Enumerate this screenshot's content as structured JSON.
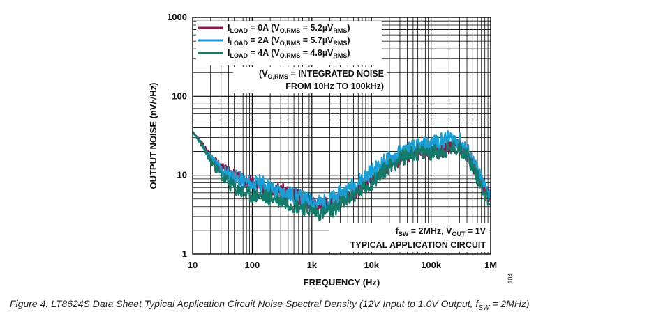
{
  "caption": {
    "prefix": "Figure 4. LT8624S Data Sheet Typical Application Circuit Noise Spectral Density (12V Input to 1.0V Output, f",
    "sub": "SW",
    "suffix": " = 2MHz)"
  },
  "figure_code": "104",
  "chart_data": {
    "type": "line",
    "xlabel": "FREQUENCY (Hz)",
    "ylabel": "OUTPUT NOISE (nV/√Hz)",
    "xscale": "log",
    "yscale": "log",
    "xlim": [
      10,
      1000000
    ],
    "ylim": [
      1,
      1000
    ],
    "grid": true,
    "x_ticks": [
      {
        "value": 10,
        "label": "10"
      },
      {
        "value": 100,
        "label": "100"
      },
      {
        "value": 1000,
        "label": "1k"
      },
      {
        "value": 10000,
        "label": "10k"
      },
      {
        "value": 100000,
        "label": "100k"
      },
      {
        "value": 1000000,
        "label": "1M"
      }
    ],
    "y_ticks": [
      {
        "value": 1,
        "label": "1"
      },
      {
        "value": 10,
        "label": "10"
      },
      {
        "value": 100,
        "label": "100"
      },
      {
        "value": 1000,
        "label": "1000"
      }
    ],
    "legend_position": "top-left",
    "legend": [
      {
        "i": "I",
        "isub": "LOAD",
        "mid": " = 0A (V",
        "vsub": "O,RMS",
        "val": " = 5.2µV",
        "rsub": "RMS",
        "end": ")"
      },
      {
        "i": "I",
        "isub": "LOAD",
        "mid": " = 2A (V",
        "vsub": "O,RMS",
        "val": " = 5.7µV",
        "rsub": "RMS",
        "end": ")"
      },
      {
        "i": "I",
        "isub": "LOAD",
        "mid": " = 4A (V",
        "vsub": "O,RMS",
        "val": " = 4.8µV",
        "rsub": "RMS",
        "end": ")"
      }
    ],
    "annotations": {
      "integrated_line1_pre": "(V",
      "integrated_line1_sub": "O,RMS",
      "integrated_line1_post": " = INTEGRATED NOISE",
      "integrated_line2": "FROM 10Hz TO 100kHz)",
      "conditions_f": "f",
      "conditions_fsub": "SW",
      "conditions_mid": " = 2MHz, V",
      "conditions_vsub": "OUT",
      "conditions_end": " = 1V",
      "circuit": "TYPICAL APPLICATION CIRCUIT"
    },
    "series": [
      {
        "color": "#8b1a4a",
        "ripple": 0.09,
        "seed": 3,
        "x": [
          10,
          13,
          17,
          22,
          30,
          40,
          55,
          70,
          90,
          110,
          130,
          170,
          220,
          300,
          400,
          500,
          700,
          900,
          1200,
          1500,
          2000,
          2500,
          3000,
          4000,
          5000,
          7000,
          9000,
          12000,
          15000,
          20000,
          30000,
          40000,
          50000,
          70000,
          100000,
          150000,
          200000,
          250000,
          300000,
          400000,
          500000,
          600000,
          700000,
          800000,
          900000,
          1000000
        ],
        "y": [
          35,
          28,
          21,
          16,
          12.5,
          10.5,
          9.5,
          8.8,
          8.2,
          7.8,
          7.2,
          7.5,
          7.0,
          6.5,
          6.2,
          5.5,
          5.0,
          4.6,
          4.4,
          4.3,
          4.5,
          4.8,
          5.0,
          5.5,
          6.0,
          7.0,
          8.2,
          10,
          11.5,
          13,
          16,
          18,
          19,
          19.5,
          20,
          20.5,
          22,
          24,
          23,
          19,
          14,
          10,
          8,
          6.5,
          5.8,
          5.5
        ]
      },
      {
        "color": "#1a9fd4",
        "ripple": 0.11,
        "seed": 11,
        "x": [
          10,
          13,
          17,
          22,
          30,
          40,
          55,
          70,
          90,
          110,
          130,
          170,
          220,
          300,
          400,
          500,
          700,
          900,
          1200,
          1500,
          2000,
          2500,
          3000,
          4000,
          5000,
          7000,
          9000,
          12000,
          15000,
          20000,
          30000,
          40000,
          50000,
          70000,
          100000,
          150000,
          200000,
          250000,
          300000,
          400000,
          500000,
          600000,
          700000,
          800000,
          900000,
          1000000
        ],
        "y": [
          35,
          27,
          20,
          15.5,
          11.8,
          10,
          9.0,
          8.5,
          7.8,
          7.5,
          8.0,
          7.5,
          6.5,
          6.0,
          5.8,
          5.5,
          5.0,
          4.7,
          4.5,
          4.4,
          4.8,
          5.2,
          5.8,
          6.5,
          7.5,
          9.0,
          10.5,
          12,
          14,
          16,
          19,
          21,
          22,
          23,
          25,
          27,
          29,
          29,
          27,
          21,
          15,
          11,
          8.5,
          7,
          6.2,
          5.8
        ]
      },
      {
        "color": "#147a6a",
        "ripple": 0.1,
        "seed": 23,
        "x": [
          10,
          13,
          17,
          22,
          30,
          40,
          55,
          70,
          90,
          110,
          130,
          170,
          220,
          300,
          400,
          500,
          700,
          900,
          1200,
          1500,
          2000,
          2500,
          3000,
          4000,
          5000,
          7000,
          9000,
          12000,
          15000,
          20000,
          30000,
          40000,
          50000,
          70000,
          100000,
          150000,
          200000,
          250000,
          300000,
          400000,
          500000,
          600000,
          700000,
          800000,
          900000,
          1000000
        ],
        "y": [
          36,
          27,
          19,
          14,
          10,
          8.0,
          6.6,
          6.0,
          5.6,
          5.5,
          5.4,
          5.3,
          5.1,
          4.8,
          4.5,
          4.2,
          3.9,
          3.6,
          3.4,
          3.3,
          3.5,
          3.9,
          4.3,
          5.0,
          5.6,
          6.5,
          7.5,
          9.0,
          11,
          13,
          16,
          18,
          19,
          19,
          19.5,
          20,
          21,
          22,
          22,
          18,
          13,
          9.5,
          7.5,
          6,
          5,
          4.2
        ]
      }
    ]
  }
}
